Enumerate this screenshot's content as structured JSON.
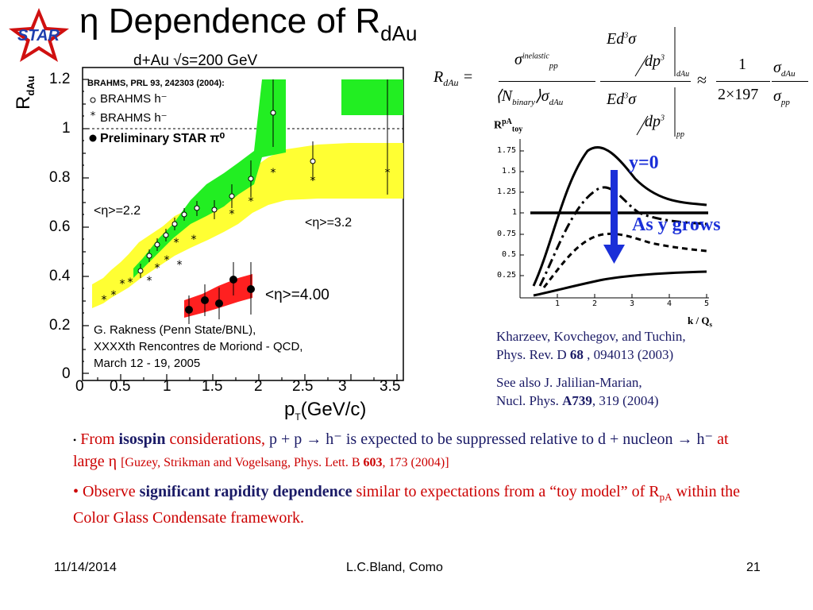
{
  "slide": {
    "title_main": "η Dependence of R",
    "title_sub": "dAu",
    "logo_text": "STAR"
  },
  "left_plot": {
    "header": "d+Au √s=200 GeV",
    "ref": "BRAHMS, PRL 93, 242303 (2004):",
    "legend": [
      "BRAHMS h⁻",
      "BRAHMS h⁻",
      "Preliminary STAR π⁰"
    ],
    "y_axis_label": "R",
    "y_axis_label_sub": "dAu",
    "y_ticks": [
      "1.2",
      "1",
      "0.8",
      "0.6",
      "0.4",
      "0.2",
      "0"
    ],
    "x_ticks": [
      "0",
      "0.5",
      "1",
      "1.5",
      "2",
      "2.5",
      "3",
      "3.5"
    ],
    "x_axis_label": "p",
    "x_axis_label_sub": "T",
    "x_axis_unit": "(GeV/c)",
    "eta_labels": [
      "<η>=2.2",
      "<η>=3.2",
      "<η>=4.00"
    ],
    "credit": [
      "G. Rakness (Penn State/BNL),",
      "XXXXth Rencontres de Moriond - QCD,",
      "March 12 - 19, 2005"
    ]
  },
  "formula": {
    "lhs": "R",
    "lhs_sub": "dAu",
    "approx": "≈",
    "num": "1",
    "den": "2×197"
  },
  "right_plot": {
    "y_label": "R",
    "y_label_sup": "pA",
    "y_label_sub": "toy",
    "y_ticks": [
      "1.75",
      "1.5",
      "1.25",
      "1",
      "0.75",
      "0.5",
      "0.25"
    ],
    "x_ticks": [
      "1",
      "2",
      "3",
      "4",
      "5"
    ],
    "x_label": "k / Q",
    "x_label_sub": "s",
    "y0_label": "y=0",
    "grows_label": "As y grows"
  },
  "citations": {
    "ref1_line1": "Kharzeev, Kovchegov, and Tuchin,",
    "ref1_line2_pre": "Phys. Rev. D ",
    "ref1_vol": "68",
    "ref1_line2_post": " , 094013 (2003)",
    "ref2_line1": "See also J. Jalilian-Marian,",
    "ref2_line2_pre": "Nucl. Phys. ",
    "ref2_vol": "A739",
    "ref2_line2_post": ", 319 (2004)"
  },
  "bullets": {
    "b1_from": "From ",
    "b1_isospin": "isospin",
    "b1_rest1": " considerations, ",
    "b1_blue1": "p + p → h⁻ is expected to be suppressed relative to d + nucleon → h⁻",
    "b1_rest2": " at large η ",
    "b1_ref": "[Guzey, Strikman and Vogelsang, Phys. Lett. B ",
    "b1_ref_vol": "603",
    "b1_ref_end": ", 173 (2004)]",
    "b2_pre": "• Observe ",
    "b2_bold": "significant rapidity dependence",
    "b2_post": " similar to expectations from a “toy model” of R",
    "b2_sub": "pA",
    "b2_end": " within the Color Glass Condensate framework."
  },
  "footer": {
    "date": "11/14/2014",
    "center": "L.C.Bland, Como",
    "page": "21"
  }
}
